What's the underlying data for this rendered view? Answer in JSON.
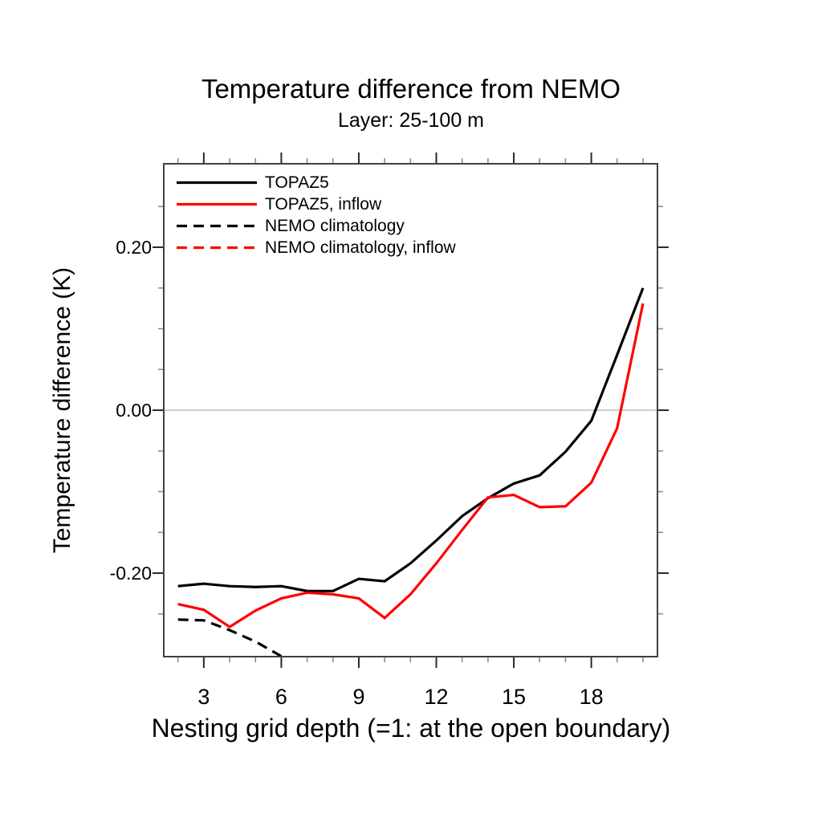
{
  "chart_data": {
    "type": "line",
    "title": "Temperature difference from NEMO",
    "subtitle": "Layer: 25-100 m",
    "xlabel": "Nesting grid depth (=1: at the open boundary)",
    "ylabel": "Temperature difference (K)",
    "xlim": [
      1.45,
      20.56
    ],
    "ylim": [
      -0.3025,
      0.3025
    ],
    "x_major_ticks": [
      3,
      6,
      9,
      12,
      15,
      18
    ],
    "x_tick_labels": [
      "3",
      "6",
      "9",
      "12",
      "15",
      "18"
    ],
    "x_minor_ticks": [
      2,
      4,
      5,
      7,
      8,
      10,
      11,
      13,
      14,
      16,
      17,
      19,
      20
    ],
    "y_major_ticks": [
      -0.2,
      0.0,
      0.2
    ],
    "y_tick_labels": [
      "-0.20",
      "0.00",
      "0.20"
    ],
    "y_minor_ticks": [
      -0.25,
      -0.15,
      -0.1,
      -0.05,
      0.05,
      0.1,
      0.15,
      0.25
    ],
    "zero_line": 0.0,
    "grid": "zero-line-only",
    "legend_position": "top-left-inside",
    "x": [
      2,
      3,
      4,
      5,
      6,
      7,
      8,
      9,
      10,
      11,
      12,
      13,
      14,
      15,
      16,
      17,
      18,
      19,
      20
    ],
    "series": [
      {
        "name": "TOPAZ5",
        "color": "#000000",
        "dash": "solid",
        "values": [
          -0.216,
          -0.213,
          -0.216,
          -0.217,
          -0.216,
          -0.222,
          -0.222,
          -0.207,
          -0.21,
          -0.188,
          -0.16,
          -0.13,
          -0.108,
          -0.09,
          -0.08,
          -0.051,
          -0.013,
          0.068,
          0.15
        ]
      },
      {
        "name": "TOPAZ5, inflow",
        "color": "#ff0000",
        "dash": "solid",
        "values": [
          -0.238,
          -0.245,
          -0.266,
          -0.246,
          -0.231,
          -0.224,
          -0.226,
          -0.231,
          -0.255,
          -0.226,
          -0.188,
          -0.147,
          -0.107,
          -0.104,
          -0.119,
          -0.118,
          -0.089,
          -0.022,
          0.131
        ]
      },
      {
        "name": "NEMO climatology",
        "color": "#000000",
        "dash": "dashed",
        "x": [
          2,
          3,
          4,
          5,
          6
        ],
        "values": [
          -0.257,
          -0.258,
          -0.27,
          -0.284,
          -0.302
        ]
      },
      {
        "name": "NEMO climatology, inflow",
        "color": "#ff0000",
        "dash": "dashed",
        "x": [],
        "values": []
      }
    ],
    "colors": {
      "axis": "#404040",
      "zero_line": "#b3b3b3",
      "major_tick": "#2a2a2a",
      "minor_tick": "#8c8c8c"
    }
  }
}
